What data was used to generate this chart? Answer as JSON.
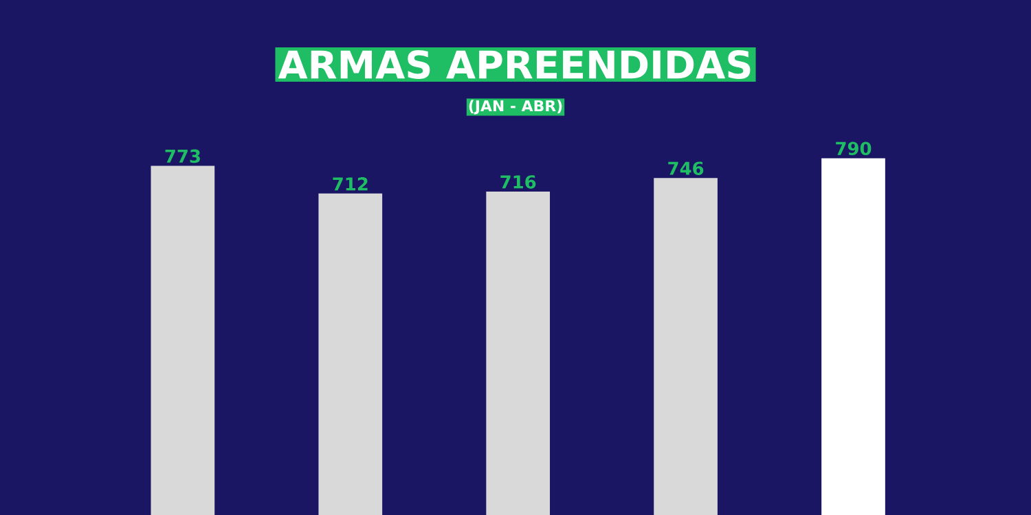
{
  "chart_data": {
    "type": "bar",
    "title": "ARMAS APREENDIDAS",
    "subtitle": "(JAN - ABR)",
    "categories": [
      null,
      null,
      null,
      null,
      null
    ],
    "values": [
      773,
      712,
      716,
      746,
      790
    ],
    "colors": [
      "#d9d9d9",
      "#d9d9d9",
      "#d9d9d9",
      "#d9d9d9",
      "#ffffff"
    ],
    "data_labels": true
  }
}
